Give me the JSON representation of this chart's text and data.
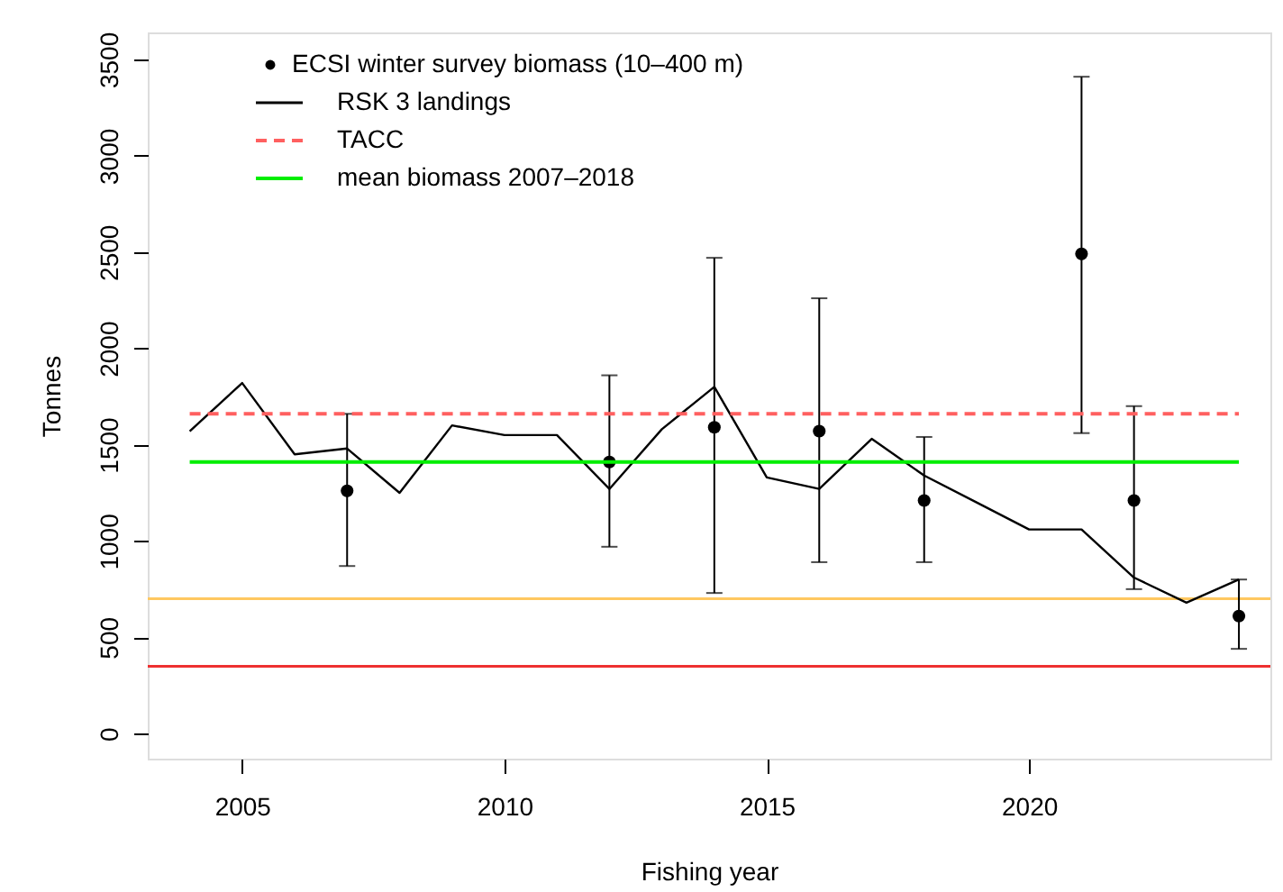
{
  "chart_data": {
    "type": "line",
    "xlabel": "Fishing year",
    "ylabel": "Tonnes",
    "xlim": [
      2003.2,
      2024.6
    ],
    "xticks": [
      2005,
      2010,
      2015,
      2020
    ],
    "ylim": [
      -130,
      3640
    ],
    "yticks": [
      0,
      500,
      1000,
      1500,
      2000,
      2500,
      3000,
      3500
    ],
    "grid": false,
    "legend": "top left",
    "series": [
      {
        "name": "ECSI winter survey biomass (10–400 m)",
        "type": "scatter",
        "marker": "circle",
        "color": "#000000",
        "x": [
          2007,
          2012,
          2014,
          2016,
          2018,
          2021,
          2022,
          2024
        ],
        "values": [
          1260,
          1410,
          1590,
          1570,
          1210,
          2490,
          1210,
          610
        ],
        "errors": [
          [
            870,
            1660
          ],
          [
            970,
            1860
          ],
          [
            730,
            2470
          ],
          [
            890,
            2260
          ],
          [
            890,
            1540
          ],
          [
            1560,
            3410
          ],
          [
            750,
            1700
          ],
          [
            440,
            800
          ]
        ]
      },
      {
        "name": "RSK 3 landings",
        "line_style": "solid",
        "color": "#000000",
        "x": [
          2004,
          2005,
          2006,
          2007,
          2008,
          2009,
          2010,
          2011,
          2012,
          2013,
          2014,
          2015,
          2016,
          2017,
          2018,
          2019,
          2020,
          2021,
          2022,
          2023,
          2024
        ],
        "values": [
          1570,
          1820,
          1450,
          1480,
          1250,
          1600,
          1550,
          1550,
          1270,
          1580,
          1800,
          1330,
          1270,
          1530,
          1340,
          1200,
          1060,
          1060,
          810,
          680,
          800
        ]
      },
      {
        "name": "TACC",
        "line_style": "dashed",
        "color": "#ff6060",
        "x": [
          2004,
          2024
        ],
        "values": [
          1660,
          1660
        ]
      },
      {
        "name": "mean biomass 2007–2018",
        "line_style": "solid",
        "color": "#00ee00",
        "x": [
          2004,
          2024
        ],
        "values": [
          1410,
          1410
        ]
      }
    ],
    "ref_lines": [
      {
        "axis": "y",
        "value": 700,
        "color": "#ffc860"
      },
      {
        "axis": "y",
        "value": 350,
        "color": "#ee3030"
      }
    ]
  }
}
